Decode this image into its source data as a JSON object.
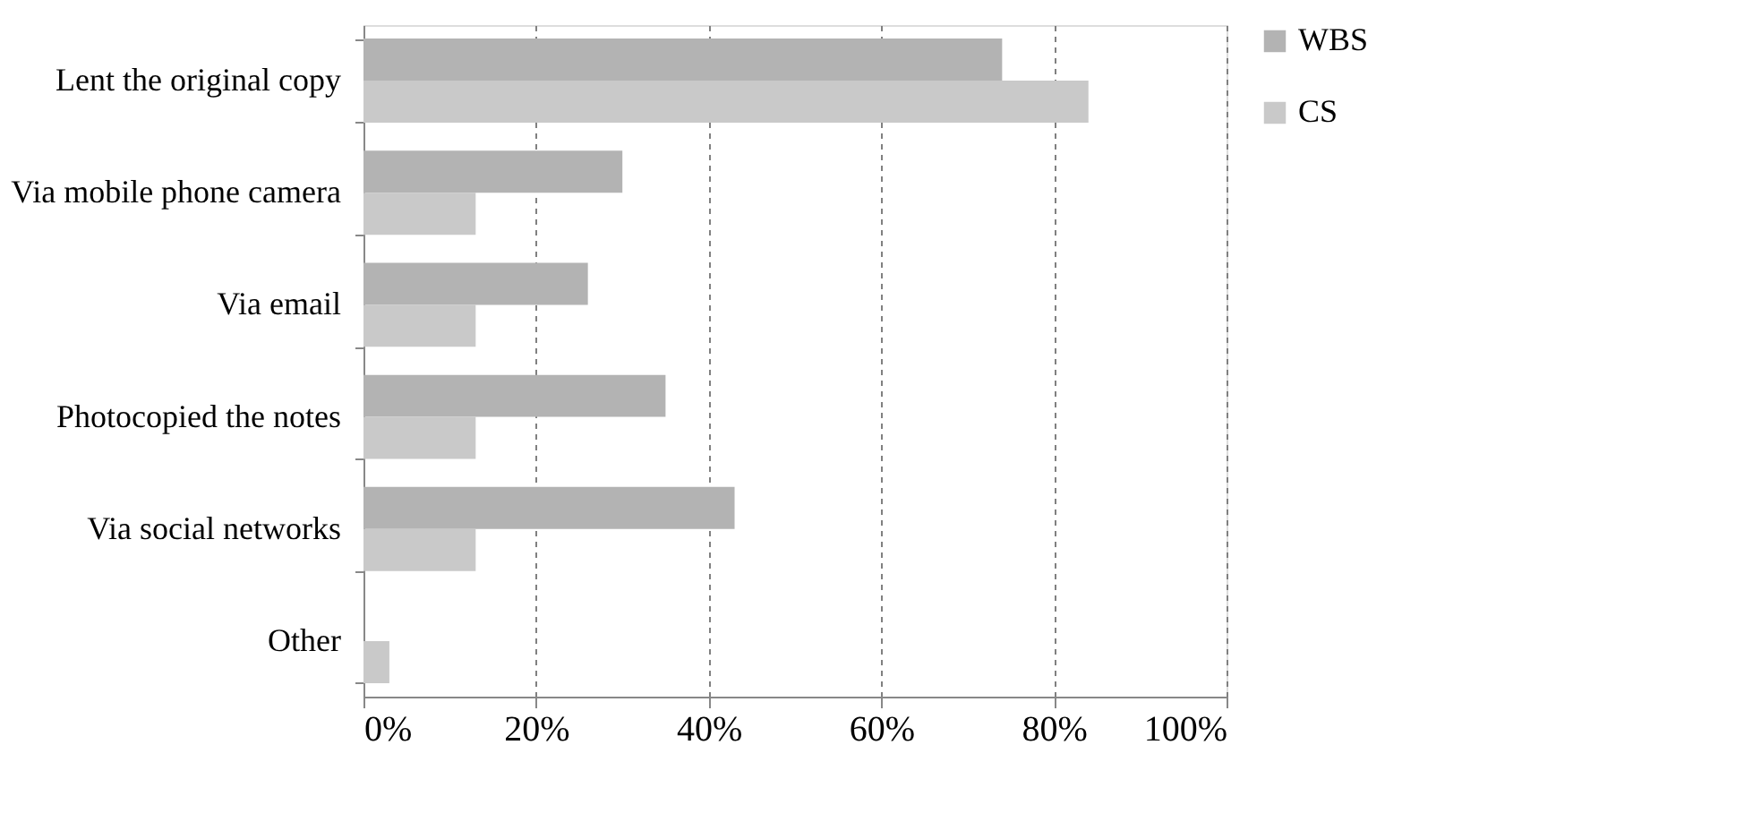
{
  "chart_data": {
    "type": "bar",
    "orientation": "horizontal",
    "categories": [
      "Lent the original copy",
      "Via mobile phone camera",
      "Via email",
      "Photocopied the notes",
      "Via social networks",
      "Other"
    ],
    "series": [
      {
        "name": "WBS",
        "color": "#b3b3b3",
        "values": [
          74,
          30,
          26,
          35,
          43,
          0
        ]
      },
      {
        "name": "CS",
        "color": "#c9c9c9",
        "values": [
          84,
          13,
          13,
          13,
          13,
          3
        ]
      }
    ],
    "xlim": [
      0,
      100
    ],
    "xticks": [
      {
        "value": 0,
        "label": "0%"
      },
      {
        "value": 20,
        "label": "20%"
      },
      {
        "value": 40,
        "label": "40%"
      },
      {
        "value": 60,
        "label": "60%"
      },
      {
        "value": 80,
        "label": "80%"
      },
      {
        "value": 100,
        "label": "100%"
      }
    ],
    "grid": "x",
    "legend": "right"
  }
}
